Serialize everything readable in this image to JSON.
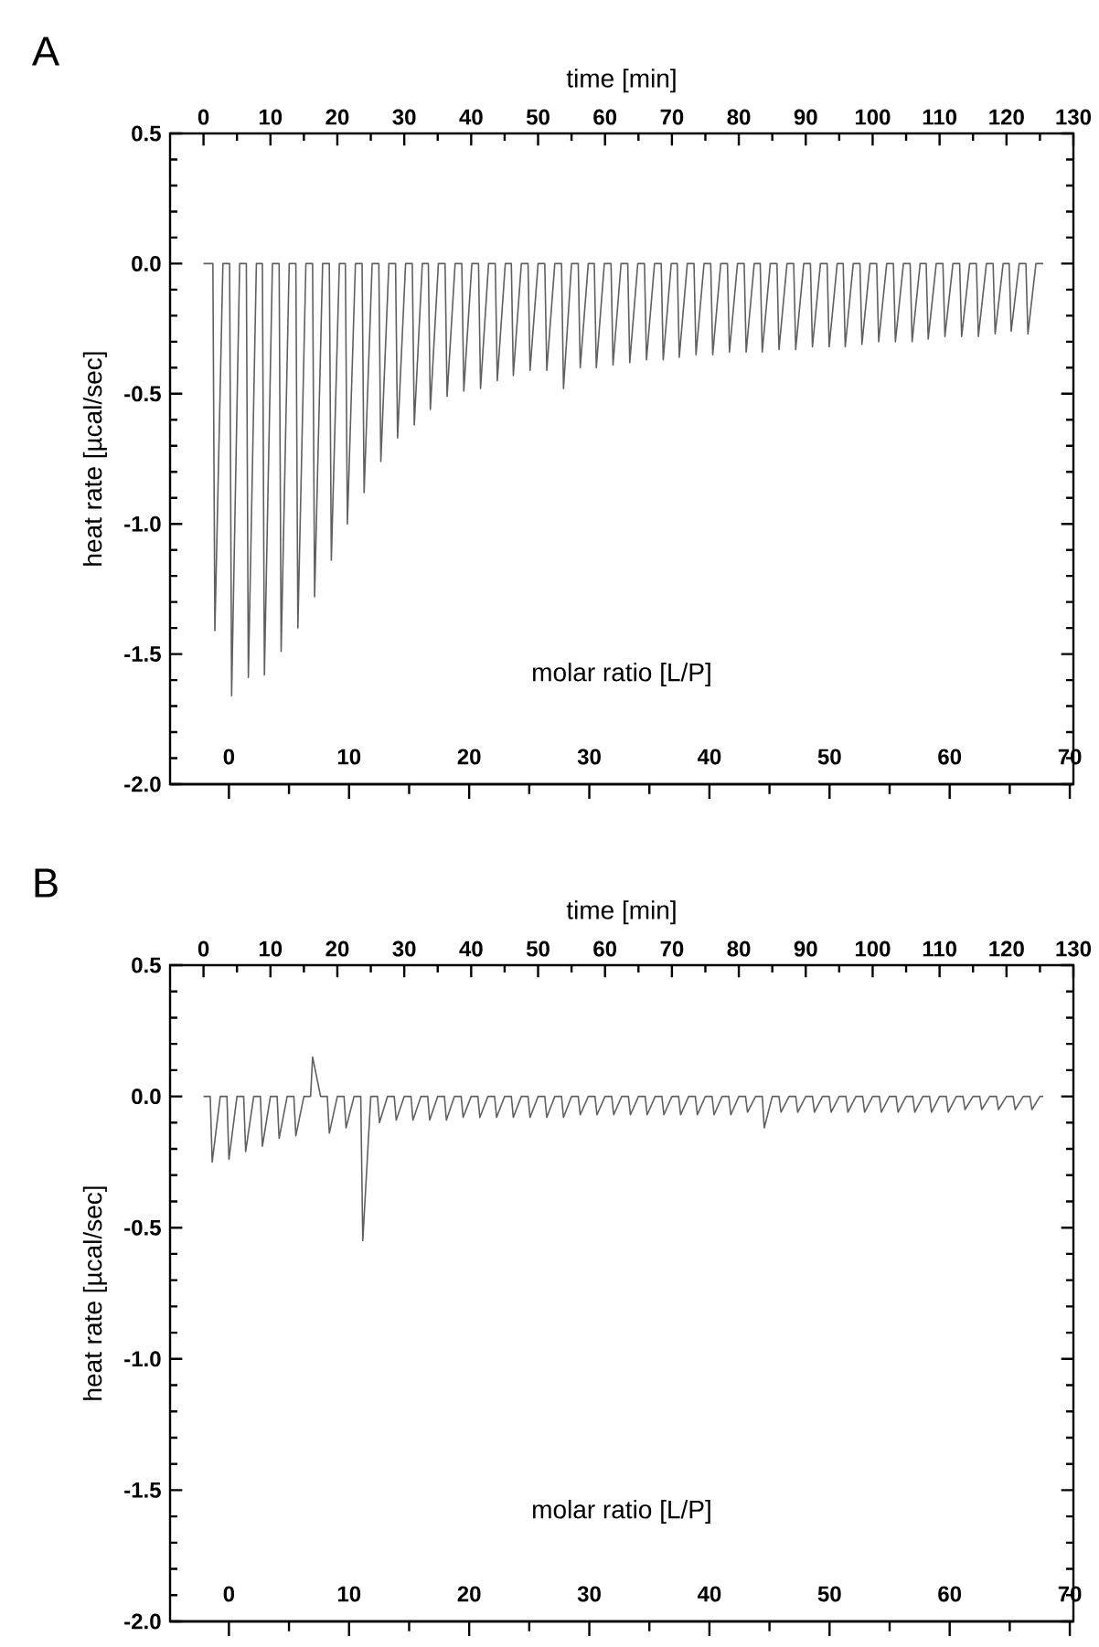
{
  "chart_data": [
    {
      "type": "line",
      "title": "A",
      "xlabel": "time [min]",
      "ylabel": "heat rate [µcal/sec]",
      "x2label": "molar ratio [L/P]",
      "xlim": [
        -5,
        130
      ],
      "xticks": [
        0,
        10,
        20,
        30,
        40,
        50,
        60,
        70,
        80,
        90,
        100,
        110,
        120,
        130
      ],
      "x2lim": [
        -4.9,
        70.3
      ],
      "x2ticks": [
        0,
        10,
        20,
        30,
        40,
        50,
        60,
        70
      ],
      "ylim": [
        -2.0,
        0.5
      ],
      "yticks": [
        {
          "value": -2.0,
          "label": "-2.0"
        },
        {
          "value": -1.5,
          "label": "-1.5"
        },
        {
          "value": -1.0,
          "label": "-1.0"
        },
        {
          "value": -0.5,
          "label": "-0.5"
        },
        {
          "value": 0,
          "label": "0.0"
        },
        {
          "value": 0.5,
          "label": "0.5"
        }
      ],
      "series": [
        {
          "color": "#606060",
          "x": [
            0.0,
            1.4,
            1.7,
            2.9,
            3.9,
            4.2,
            5.4,
            6.4,
            6.7,
            7.9,
            8.8,
            9.1,
            10.3,
            11.3,
            11.6,
            12.8,
            13.8,
            14.1,
            15.3,
            16.3,
            16.6,
            17.8,
            18.8,
            19.1,
            20.3,
            21.2,
            21.5,
            22.7,
            23.7,
            24.0,
            25.2,
            26.2,
            26.5,
            27.7,
            28.7,
            29.0,
            30.2,
            31.2,
            31.5,
            32.7,
            33.6,
            33.9,
            35.1,
            36.1,
            36.4,
            37.6,
            38.6,
            38.9,
            40.1,
            41.1,
            41.4,
            42.6,
            43.6,
            43.9,
            45.1,
            46.0,
            46.3,
            47.5,
            48.5,
            48.8,
            50.0,
            51.0,
            51.3,
            52.5,
            53.5,
            53.8,
            55.0,
            56.0,
            56.3,
            57.5,
            58.4,
            58.7,
            59.9,
            60.9,
            61.2,
            62.4,
            63.4,
            63.7,
            64.9,
            65.9,
            66.2,
            67.4,
            68.4,
            68.7,
            69.9,
            70.8,
            71.1,
            72.3,
            73.3,
            73.6,
            74.8,
            75.8,
            76.1,
            77.3,
            78.3,
            78.6,
            79.8,
            80.8,
            81.1,
            82.3,
            83.2,
            83.5,
            84.7,
            85.7,
            86.0,
            87.2,
            88.2,
            88.5,
            89.7,
            90.7,
            91.0,
            92.2,
            93.2,
            93.5,
            94.7,
            95.6,
            95.9,
            97.1,
            98.1,
            98.4,
            99.6,
            100.6,
            100.9,
            102.1,
            103.1,
            103.4,
            104.6,
            105.6,
            105.9,
            107.1,
            108.0,
            108.3,
            109.5,
            110.5,
            110.8,
            112.0,
            113.0,
            113.3,
            114.5,
            115.5,
            115.8,
            117.0,
            118.0,
            118.3,
            119.5,
            120.4,
            120.7,
            121.9,
            122.9,
            123.2,
            124.4,
            125.5
          ],
          "values": [
            0,
            0,
            -1.41,
            0,
            0,
            -1.66,
            0,
            0,
            -1.59,
            0,
            0,
            -1.58,
            0,
            0,
            -1.49,
            0,
            0,
            -1.4,
            0,
            0,
            -1.28,
            0,
            0,
            -1.14,
            0,
            0,
            -1.0,
            0,
            0,
            -0.88,
            0,
            0,
            -0.76,
            0,
            0,
            -0.67,
            0,
            0,
            -0.62,
            0,
            0,
            -0.56,
            0,
            0,
            -0.51,
            0,
            0,
            -0.49,
            0,
            0,
            -0.48,
            0,
            0,
            -0.45,
            0,
            0,
            -0.43,
            0,
            0,
            -0.41,
            0,
            0,
            -0.41,
            0,
            0,
            -0.48,
            0,
            0,
            -0.4,
            0,
            0,
            -0.4,
            0,
            0,
            -0.39,
            0,
            0,
            -0.38,
            0,
            0,
            -0.37,
            0,
            0,
            -0.37,
            0,
            0,
            -0.36,
            0,
            0,
            -0.35,
            0,
            0,
            -0.35,
            0,
            0,
            -0.34,
            0,
            0,
            -0.34,
            0,
            0,
            -0.34,
            0,
            0,
            -0.33,
            0,
            0,
            -0.33,
            0,
            0,
            -0.32,
            0,
            0,
            -0.32,
            0,
            0,
            -0.32,
            0,
            0,
            -0.31,
            0,
            0,
            -0.3,
            0,
            0,
            -0.3,
            0,
            0,
            -0.3,
            0,
            0,
            -0.29,
            0,
            0,
            -0.28,
            0,
            0,
            -0.28,
            0,
            0,
            -0.28,
            0,
            0,
            -0.27,
            0,
            0,
            -0.26,
            0,
            0,
            -0.27,
            0,
            0
          ]
        }
      ]
    },
    {
      "type": "line",
      "title": "B",
      "xlabel": "time [min]",
      "ylabel": "heat rate [µcal/sec]",
      "x2label": "molar ratio [L/P]",
      "xlim": [
        -5,
        130
      ],
      "xticks": [
        0,
        10,
        20,
        30,
        40,
        50,
        60,
        70,
        80,
        90,
        100,
        110,
        120,
        130
      ],
      "x2lim": [
        -4.9,
        70.3
      ],
      "x2ticks": [
        0,
        10,
        20,
        30,
        40,
        50,
        60,
        70
      ],
      "ylim": [
        -2.0,
        0.5
      ],
      "yticks": [
        {
          "value": -2.0,
          "label": "-2.0"
        },
        {
          "value": -1.5,
          "label": "-1.5"
        },
        {
          "value": -1.0,
          "label": "-1.0"
        },
        {
          "value": -0.5,
          "label": "-0.5"
        },
        {
          "value": 0,
          "label": "0.0"
        },
        {
          "value": 0.5,
          "label": "0.5"
        }
      ],
      "series": [
        {
          "color": "#606060",
          "x": [
            0.0,
            1.0,
            1.3,
            2.5,
            3.5,
            3.8,
            5.0,
            6.0,
            6.3,
            7.5,
            8.5,
            8.8,
            10.0,
            11.0,
            11.3,
            12.5,
            13.5,
            13.8,
            15.0,
            16.0,
            16.3,
            17.5,
            18.5,
            18.8,
            20.0,
            21.0,
            21.3,
            22.5,
            23.5,
            23.8,
            25.0,
            26.0,
            26.3,
            27.5,
            28.5,
            28.8,
            30.0,
            31.0,
            31.3,
            32.5,
            33.5,
            33.8,
            35.0,
            36.0,
            36.3,
            37.5,
            38.5,
            38.8,
            40.0,
            41.0,
            41.3,
            42.5,
            43.5,
            43.8,
            45.0,
            46.0,
            46.3,
            47.5,
            48.5,
            48.8,
            50.0,
            51.0,
            51.3,
            52.5,
            53.5,
            53.8,
            55.0,
            56.0,
            56.3,
            57.5,
            58.5,
            58.8,
            60.0,
            61.0,
            61.3,
            62.5,
            63.5,
            63.8,
            65.0,
            66.0,
            66.3,
            67.5,
            68.5,
            68.8,
            70.0,
            71.0,
            71.3,
            72.5,
            73.5,
            73.8,
            75.0,
            76.0,
            76.3,
            77.5,
            78.5,
            78.8,
            80.0,
            81.0,
            81.3,
            82.5,
            83.5,
            83.8,
            85.0,
            86.0,
            86.3,
            87.5,
            88.5,
            88.8,
            90.0,
            91.0,
            91.3,
            92.5,
            93.5,
            93.8,
            95.0,
            96.0,
            96.3,
            97.5,
            98.5,
            98.8,
            100.0,
            101.0,
            101.3,
            102.5,
            103.5,
            103.8,
            105.0,
            106.0,
            106.3,
            107.5,
            108.5,
            108.8,
            110.0,
            111.0,
            111.3,
            112.5,
            113.5,
            113.8,
            115.0,
            116.0,
            116.3,
            117.5,
            118.5,
            118.8,
            120.0,
            121.0,
            121.3,
            122.5,
            123.5,
            123.8,
            125.0,
            125.5
          ],
          "values": [
            0,
            0,
            -0.25,
            0,
            0,
            -0.24,
            0,
            0,
            -0.21,
            0,
            0,
            -0.19,
            0,
            0,
            -0.16,
            0,
            0,
            -0.15,
            0,
            0,
            0.15,
            0,
            0,
            -0.14,
            0,
            0,
            -0.12,
            0,
            0,
            -0.55,
            0,
            0,
            -0.1,
            0,
            0,
            -0.09,
            0,
            0,
            -0.09,
            0,
            0,
            -0.09,
            0,
            0,
            -0.09,
            0,
            0,
            -0.08,
            0,
            0,
            -0.08,
            0,
            0,
            -0.08,
            0,
            0,
            -0.08,
            0,
            0,
            -0.08,
            0,
            0,
            -0.08,
            0,
            0,
            -0.08,
            0,
            0,
            -0.07,
            0,
            0,
            -0.07,
            0,
            0,
            -0.07,
            0,
            0,
            -0.07,
            0,
            0,
            -0.07,
            0,
            0,
            -0.07,
            0,
            0,
            -0.07,
            0,
            0,
            -0.07,
            0,
            0,
            -0.07,
            0,
            0,
            -0.07,
            0,
            0,
            -0.06,
            0,
            0,
            -0.12,
            0,
            0,
            -0.06,
            0,
            0,
            -0.06,
            0,
            0,
            -0.06,
            0,
            0,
            -0.06,
            0,
            0,
            -0.06,
            0,
            0,
            -0.06,
            0,
            0,
            -0.06,
            0,
            0,
            -0.06,
            0,
            0,
            -0.06,
            0,
            0,
            -0.06,
            0,
            0,
            -0.06,
            0,
            0,
            -0.05,
            0,
            0,
            -0.05,
            0,
            0,
            -0.05,
            0,
            0,
            -0.05,
            0,
            0,
            -0.05,
            0,
            0
          ]
        }
      ]
    }
  ]
}
